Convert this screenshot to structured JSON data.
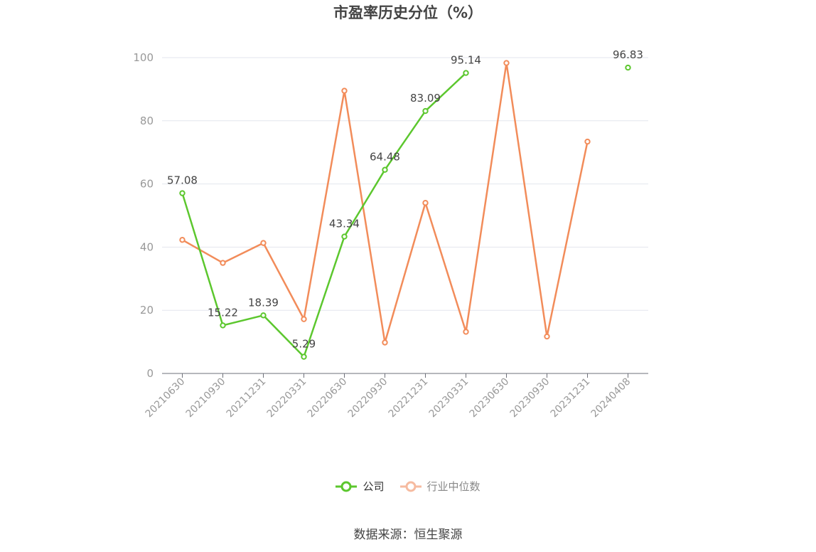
{
  "chart_data": {
    "type": "line",
    "title": "市盈率历史分位（%）",
    "categories": [
      "20210630",
      "20210930",
      "20211231",
      "20220331",
      "20220630",
      "20220930",
      "20221231",
      "20230331",
      "20230630",
      "20230930",
      "20231231",
      "20240408"
    ],
    "ylim": [
      0,
      100
    ],
    "yticks": [
      0,
      20,
      40,
      60,
      80,
      100
    ],
    "grid": true,
    "legend_position": "bottom",
    "series": [
      {
        "name": "公司",
        "color": "#5cc72e",
        "values": [
          57.08,
          15.22,
          18.39,
          5.29,
          43.34,
          64.48,
          83.09,
          95.14,
          null,
          null,
          null,
          96.83
        ],
        "labels": [
          "57.08",
          "15.22",
          "18.39",
          "5.29",
          "43.34",
          "64.48",
          "83.09",
          "95.14",
          null,
          null,
          null,
          "96.83"
        ]
      },
      {
        "name": "行业中位数",
        "color": "#f28c5a",
        "values": [
          42.3,
          35.0,
          41.3,
          17.2,
          89.5,
          9.8,
          54.0,
          13.2,
          98.3,
          11.7,
          73.4,
          null
        ]
      }
    ]
  },
  "source": "数据来源：恒生聚源"
}
